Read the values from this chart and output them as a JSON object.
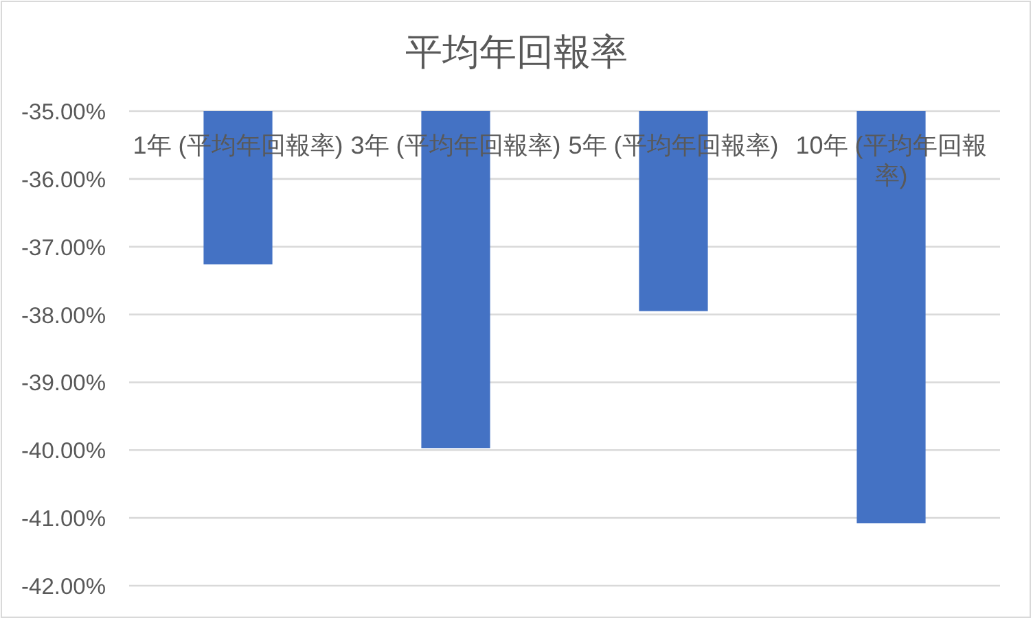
{
  "chart_data": {
    "type": "bar",
    "title": "平均年回報率",
    "categories": [
      "1年 (平均年回報率)",
      "3年 (平均年回報率)",
      "5年 (平均年回報率)",
      "10年 (平均年回報率)"
    ],
    "values": [
      -37.26,
      -39.97,
      -37.95,
      -41.08
    ],
    "color": "#4472c4",
    "ylim": [
      -42,
      -35
    ],
    "yticks": [
      {
        "value": -42,
        "label": "-42.00%"
      },
      {
        "value": -41,
        "label": "-41.00%"
      },
      {
        "value": -40,
        "label": "-40.00%"
      },
      {
        "value": -39,
        "label": "-39.00%"
      },
      {
        "value": -38,
        "label": "-38.00%"
      },
      {
        "value": -37,
        "label": "-37.00%"
      },
      {
        "value": -36,
        "label": "-36.00%"
      },
      {
        "value": -35,
        "label": "-35.00%"
      }
    ],
    "grid": "y"
  }
}
